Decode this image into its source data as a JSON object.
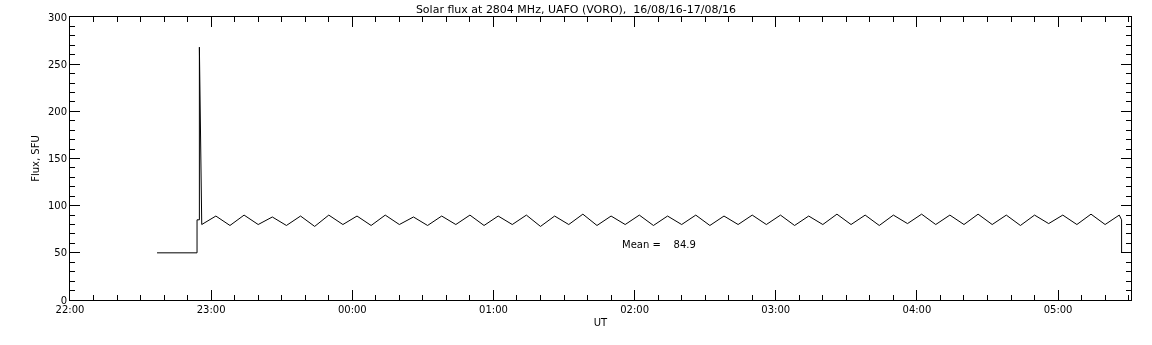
{
  "chart_data": {
    "type": "line",
    "title": "Solar flux at 2804 MHz, UAFO (VORO),  16/08/16-17/08/16",
    "xlabel": "UT",
    "ylabel": "Flux, SFU",
    "x": [
      "--08-16T22:37",
      "--08-16T22:54",
      "--08-16T22:54",
      "--08-16T22:55",
      "--08-16T22:55",
      "--08-16T22:56",
      "--08-16T23:02",
      "--08-16T23:08",
      "--08-16T23:14",
      "--08-16T23:20",
      "--08-16T23:26",
      "--08-16T23:32",
      "--08-16T23:38",
      "--08-16T23:44",
      "--08-16T23:50",
      "--08-16T23:56",
      "--08-17T00:02",
      "--08-17T00:08",
      "--08-17T00:14",
      "--08-17T00:20",
      "--08-17T00:26",
      "--08-17T00:32",
      "--08-17T00:38",
      "--08-17T00:44",
      "--08-17T00:50",
      "--08-17T00:56",
      "--08-17T01:02",
      "--08-17T01:08",
      "--08-17T01:14",
      "--08-17T01:20",
      "--08-17T01:26",
      "--08-17T01:32",
      "--08-17T01:38",
      "--08-17T01:44",
      "--08-17T01:50",
      "--08-17T01:56",
      "--08-17T02:02",
      "--08-17T02:08",
      "--08-17T02:14",
      "--08-17T02:20",
      "--08-17T02:26",
      "--08-17T02:32",
      "--08-17T02:38",
      "--08-17T02:44",
      "--08-17T02:50",
      "--08-17T02:56",
      "--08-17T03:02",
      "--08-17T03:08",
      "--08-17T03:14",
      "--08-17T03:20",
      "--08-17T03:26",
      "--08-17T03:32",
      "--08-17T03:38",
      "--08-17T03:44",
      "--08-17T03:50",
      "--08-17T03:56",
      "--08-17T04:02",
      "--08-17T04:08",
      "--08-17T04:14",
      "--08-17T04:20",
      "--08-17T04:26",
      "--08-17T04:32",
      "--08-17T04:38",
      "--08-17T04:44",
      "--08-17T04:50",
      "--08-17T04:56",
      "--08-17T05:02",
      "--08-17T05:08",
      "--08-17T05:14",
      "--08-17T05:20",
      "--08-17T05:26",
      "--08-17T05:27",
      "--08-17T05:27"
    ],
    "series": [
      {
        "color": "#000000",
        "values": [
          50,
          50,
          85,
          85,
          268,
          80,
          89,
          79,
          90,
          80,
          88,
          79,
          89,
          78,
          90,
          80,
          89,
          79,
          90,
          80,
          88,
          79,
          89,
          80,
          90,
          79,
          89,
          80,
          90,
          78,
          89,
          80,
          91,
          79,
          89,
          80,
          90,
          79,
          89,
          80,
          90,
          79,
          89,
          80,
          90,
          80,
          90,
          79,
          89,
          80,
          91,
          80,
          90,
          79,
          90,
          81,
          91,
          80,
          90,
          80,
          91,
          80,
          90,
          79,
          90,
          81,
          90,
          80,
          91,
          80,
          90,
          85,
          50
        ]
      }
    ],
    "xlim": [
      "--08-16T22:00",
      "--08-17T05:31"
    ],
    "xticks": [
      {
        "value": "--08-16T22:00",
        "label": "22:00"
      },
      {
        "value": "--08-16T23:00",
        "label": "23:00"
      },
      {
        "value": "--08-17T00:00",
        "label": "00:00"
      },
      {
        "value": "--08-17T01:00",
        "label": "01:00"
      },
      {
        "value": "--08-17T02:00",
        "label": "02:00"
      },
      {
        "value": "--08-17T03:00",
        "label": "03:00"
      },
      {
        "value": "--08-17T04:00",
        "label": "04:00"
      },
      {
        "value": "--08-17T05:00",
        "label": "05:00"
      }
    ],
    "ylim": [
      0,
      300
    ],
    "yticks": [
      0,
      50,
      100,
      150,
      200,
      250,
      300
    ],
    "annotations": [
      "Mean =    84.9"
    ]
  }
}
